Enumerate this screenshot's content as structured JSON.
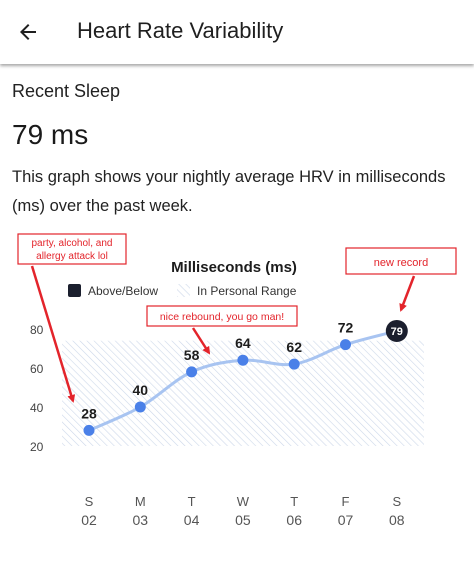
{
  "header": {
    "back_icon": "arrow-left-icon",
    "title": "Heart Rate Variability"
  },
  "section": {
    "title": "Recent Sleep",
    "metric": "79 ms",
    "description": "This graph shows your nightly average HRV in milliseconds (ms) over the past week."
  },
  "colors": {
    "line": "#a8c4f1",
    "point": "#4a80e8",
    "highlight": "#1b1f2e",
    "annotation": "#e3242b",
    "range_hatch": "#c9d6ea"
  },
  "chart_data": {
    "type": "line",
    "title": "Milliseconds (ms)",
    "legend": [
      {
        "label": "Above/Below",
        "swatch": "solid"
      },
      {
        "label": "In Personal Range",
        "swatch": "hatched"
      }
    ],
    "personal_range": [
      20,
      74
    ],
    "y_ticks": [
      80,
      60,
      40,
      20
    ],
    "ylim": [
      20,
      80
    ],
    "days": [
      {
        "weekday": "S",
        "date": "02",
        "value": 28
      },
      {
        "weekday": "M",
        "date": "03",
        "value": 40
      },
      {
        "weekday": "T",
        "date": "04",
        "value": 58
      },
      {
        "weekday": "W",
        "date": "05",
        "value": 64
      },
      {
        "weekday": "T",
        "date": "06",
        "value": 62
      },
      {
        "weekday": "F",
        "date": "07",
        "value": 72
      },
      {
        "weekday": "S",
        "date": "08",
        "value": 79,
        "highlight": true
      }
    ],
    "annotations": [
      {
        "text_line1": "party, alcohol, and",
        "text_line2": "allergy attack lol",
        "points_to_day": 0
      },
      {
        "text": "nice rebound, you go man!",
        "points_to_day": 2
      },
      {
        "text": "new record",
        "points_to_day": 6
      }
    ]
  }
}
